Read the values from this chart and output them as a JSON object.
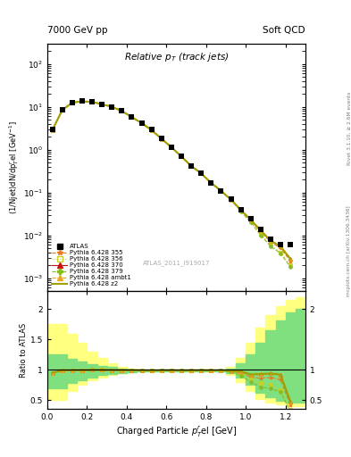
{
  "title_left": "7000 GeV pp",
  "title_right": "Soft QCD",
  "plot_title": "Relative $p_T$ (track jets)",
  "ylabel_main": "(1/Njet)dN/dp$^{r}_{T}$el [GeV$^{-1}$]",
  "ylabel_ratio": "Ratio to ATLAS",
  "xlabel": "Charged Particle $p^{r}_{T}$el [GeV]",
  "right_label_top": "Rivet 3.1.10, ≥ 2.6M events",
  "right_label_bot": "mcplots.cern.ch [arXiv:1306.3436]",
  "watermark": "ATLAS_2011_I919017",
  "xlim": [
    0.0,
    1.3
  ],
  "ylim_main": [
    0.0005,
    300
  ],
  "ylim_ratio": [
    0.35,
    2.3
  ],
  "x_data": [
    0.025,
    0.075,
    0.125,
    0.175,
    0.225,
    0.275,
    0.325,
    0.375,
    0.425,
    0.475,
    0.525,
    0.575,
    0.625,
    0.675,
    0.725,
    0.775,
    0.825,
    0.875,
    0.925,
    0.975,
    1.025,
    1.075,
    1.125,
    1.175,
    1.225
  ],
  "atlas_y": [
    3.0,
    8.5,
    12.5,
    13.5,
    13.0,
    11.5,
    10.0,
    8.0,
    5.8,
    4.2,
    2.9,
    1.8,
    1.15,
    0.7,
    0.42,
    0.28,
    0.17,
    0.11,
    0.07,
    0.04,
    0.025,
    0.014,
    0.008,
    0.006,
    0.006
  ],
  "py355_y": [
    2.85,
    8.4,
    12.4,
    13.4,
    12.95,
    11.45,
    9.95,
    7.95,
    5.75,
    4.15,
    2.85,
    1.78,
    1.14,
    0.69,
    0.415,
    0.277,
    0.168,
    0.109,
    0.068,
    0.038,
    0.022,
    0.012,
    0.007,
    0.005,
    0.0025
  ],
  "py356_y": [
    2.85,
    8.4,
    12.4,
    13.4,
    12.95,
    11.45,
    9.95,
    7.95,
    5.75,
    4.15,
    2.85,
    1.78,
    1.14,
    0.69,
    0.415,
    0.277,
    0.168,
    0.109,
    0.068,
    0.037,
    0.021,
    0.011,
    0.006,
    0.004,
    0.002
  ],
  "py370_y": [
    2.85,
    8.4,
    12.4,
    13.4,
    12.95,
    11.45,
    9.95,
    7.95,
    5.75,
    4.15,
    2.85,
    1.78,
    1.14,
    0.69,
    0.415,
    0.277,
    0.168,
    0.109,
    0.068,
    0.039,
    0.023,
    0.013,
    0.0075,
    0.0055,
    0.0028
  ],
  "py379_y": [
    2.85,
    8.4,
    12.4,
    13.4,
    12.95,
    11.45,
    9.95,
    7.95,
    5.75,
    4.15,
    2.85,
    1.78,
    1.14,
    0.69,
    0.415,
    0.277,
    0.168,
    0.109,
    0.068,
    0.036,
    0.02,
    0.01,
    0.0055,
    0.0038,
    0.0018
  ],
  "pyambt1_y": [
    2.85,
    8.4,
    12.4,
    13.4,
    12.95,
    11.45,
    9.95,
    7.95,
    5.75,
    4.15,
    2.85,
    1.78,
    1.14,
    0.69,
    0.415,
    0.277,
    0.168,
    0.109,
    0.068,
    0.039,
    0.023,
    0.013,
    0.0075,
    0.0055,
    0.0028
  ],
  "pyz2_y": [
    2.85,
    8.4,
    12.4,
    13.4,
    12.95,
    11.45,
    9.95,
    7.95,
    5.75,
    4.15,
    2.85,
    1.78,
    1.14,
    0.69,
    0.415,
    0.277,
    0.168,
    0.109,
    0.068,
    0.039,
    0.023,
    0.013,
    0.0075,
    0.0055,
    0.0028
  ],
  "color_355": "#e87820",
  "color_356": "#c8d020",
  "color_370": "#c81010",
  "color_379": "#88bb20",
  "color_ambt1": "#e8a820",
  "color_z2": "#a0a000",
  "band_x": [
    0.0,
    0.05,
    0.1,
    0.15,
    0.2,
    0.25,
    0.3,
    0.35,
    0.4,
    0.45,
    0.5,
    0.55,
    0.6,
    0.65,
    0.7,
    0.75,
    0.8,
    0.85,
    0.9,
    0.95,
    1.0,
    1.05,
    1.1,
    1.15,
    1.2,
    1.25,
    1.3
  ],
  "band_yellow_lo": [
    1.75,
    1.75,
    1.6,
    1.45,
    1.3,
    1.2,
    1.1,
    1.05,
    1.02,
    1.01,
    1.01,
    1.01,
    1.01,
    1.01,
    1.01,
    1.01,
    1.01,
    1.01,
    1.05,
    1.2,
    1.45,
    1.7,
    1.9,
    2.05,
    2.15,
    2.2,
    2.2
  ],
  "band_yellow_hi": [
    0.5,
    0.5,
    0.65,
    0.75,
    0.82,
    0.87,
    0.91,
    0.94,
    0.96,
    0.97,
    0.97,
    0.97,
    0.97,
    0.97,
    0.97,
    0.97,
    0.97,
    0.97,
    0.92,
    0.8,
    0.65,
    0.52,
    0.45,
    0.42,
    0.4,
    0.4,
    0.4
  ],
  "band_green_lo": [
    1.25,
    1.25,
    1.18,
    1.13,
    1.09,
    1.06,
    1.04,
    1.02,
    1.01,
    1.01,
    1.01,
    1.01,
    1.01,
    1.01,
    1.01,
    1.01,
    1.01,
    1.01,
    1.02,
    1.1,
    1.25,
    1.45,
    1.65,
    1.82,
    1.95,
    2.0,
    2.0
  ],
  "band_green_hi": [
    0.7,
    0.7,
    0.78,
    0.83,
    0.87,
    0.91,
    0.93,
    0.95,
    0.96,
    0.97,
    0.97,
    0.97,
    0.97,
    0.97,
    0.97,
    0.97,
    0.97,
    0.97,
    0.95,
    0.87,
    0.75,
    0.62,
    0.54,
    0.48,
    0.45,
    0.45,
    0.45
  ]
}
